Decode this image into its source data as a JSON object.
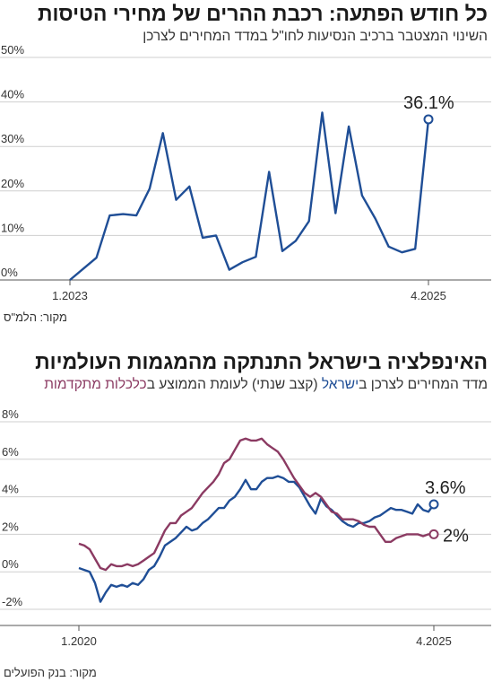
{
  "chart_data": [
    {
      "type": "line",
      "title": "כל חודש הפתעה: רכבת ההרים של מחירי הטיסות",
      "subtitle": "השינוי המצטבר ברכיב הנסיעות לחו\"ל במדד המחירים לצרכן",
      "source": "מקור: הלמ\"ס",
      "x": [
        "1.2023",
        "2.2023",
        "3.2023",
        "4.2023",
        "5.2023",
        "6.2023",
        "7.2023",
        "8.2023",
        "9.2023",
        "10.2023",
        "11.2023",
        "12.2023",
        "1.2024",
        "2.2024",
        "3.2024",
        "4.2024",
        "5.2024",
        "6.2024",
        "7.2024",
        "8.2024",
        "9.2024",
        "10.2024",
        "11.2024",
        "12.2024",
        "1.2025",
        "2.2025",
        "3.2025",
        "4.2025"
      ],
      "x_tick_labels": [
        "1.2023",
        "4.2025"
      ],
      "y_tick_labels": [
        "0%",
        "10%",
        "20%",
        "30%",
        "40%",
        "50%"
      ],
      "ylim": [
        0,
        50
      ],
      "grid": true,
      "series": [
        {
          "color": "#1f4e96",
          "values": [
            0,
            2.5,
            5,
            14.5,
            14.8,
            14.5,
            20.5,
            33,
            18,
            21,
            9.5,
            10,
            2.3,
            4,
            5.2,
            24.3,
            6.5,
            8.8,
            13.2,
            37.6,
            15,
            34.5,
            19,
            13.8,
            7.5,
            6.2,
            7,
            36.1
          ]
        }
      ],
      "annotations": [
        {
          "text": "36.1%",
          "x": "4.2025",
          "y": 36.1
        }
      ]
    },
    {
      "type": "line",
      "title": "האינפלציה בישראל התנתקה מהמגמות העולמיות",
      "subtitle_parts": [
        {
          "text": "מדד המחירים לצרכן ב",
          "color": ""
        },
        {
          "text": "ישראל",
          "color": "#1f4e96"
        },
        {
          "text": " (קצב שנתי) לעומת הממוצע ב",
          "color": ""
        },
        {
          "text": "כלכלות מתקדמות",
          "color": "#8b3a62"
        }
      ],
      "source": "מקור: בנק הפועלים",
      "x_tick_labels": [
        "1.2020",
        "4.2025"
      ],
      "x_range": [
        "1.2020",
        "4.2025"
      ],
      "y_tick_labels": [
        "-2%",
        "0%",
        "2%",
        "4%",
        "6%",
        "8%"
      ],
      "ylim": [
        -2,
        8
      ],
      "grid": true,
      "series": [
        {
          "name": "ישראל",
          "color": "#1f4e96",
          "values": [
            0.2,
            0.1,
            0.0,
            -0.6,
            -1.6,
            -1.1,
            -0.7,
            -0.8,
            -0.7,
            -0.8,
            -0.6,
            -0.7,
            -0.4,
            0.1,
            0.3,
            0.8,
            1.4,
            1.6,
            1.8,
            2.1,
            2.4,
            2.2,
            2.3,
            2.6,
            2.8,
            3.1,
            3.4,
            3.4,
            3.8,
            4.0,
            4.4,
            4.9,
            4.4,
            4.4,
            4.8,
            5.0,
            5.0,
            5.1,
            5.0,
            4.8,
            4.8,
            4.5,
            4.0,
            3.5,
            3.1,
            3.9,
            3.5,
            3.3,
            3.0,
            2.7,
            2.5,
            2.4,
            2.6,
            2.6,
            2.7,
            2.9,
            3.0,
            3.2,
            3.4,
            3.3,
            3.3,
            3.2,
            3.1,
            3.6,
            3.3,
            3.2,
            3.6
          ],
          "end_label": "3.6%"
        },
        {
          "name": "כלכלות מתקדמות",
          "color": "#8b3a62",
          "values": [
            1.5,
            1.4,
            1.2,
            0.7,
            0.2,
            0.1,
            0.4,
            0.3,
            0.3,
            0.4,
            0.3,
            0.4,
            0.6,
            0.8,
            1.0,
            1.6,
            2.2,
            2.6,
            2.6,
            3.0,
            3.2,
            3.4,
            3.8,
            4.2,
            4.5,
            4.8,
            5.2,
            5.8,
            6.0,
            6.5,
            7.0,
            7.1,
            7.0,
            7.0,
            7.1,
            6.8,
            6.6,
            6.4,
            6.0,
            5.5,
            5.0,
            4.6,
            4.2,
            4.0,
            4.2,
            4.0,
            3.6,
            3.2,
            3.1,
            2.8,
            2.8,
            2.8,
            2.7,
            2.5,
            2.4,
            2.4,
            2.0,
            1.6,
            1.6,
            1.8,
            1.9,
            2.0,
            2.0,
            2.0,
            1.9,
            2.0,
            2.0
          ],
          "end_label": "2%"
        }
      ]
    }
  ]
}
